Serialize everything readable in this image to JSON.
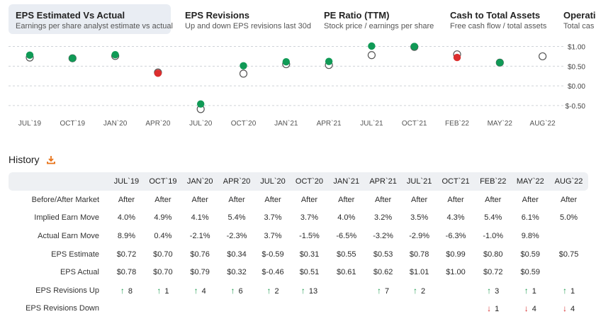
{
  "tabs": [
    {
      "title": "EPS Estimated Vs Actual",
      "subtitle": "Earnings per share analyst estimate vs actual"
    },
    {
      "title": "EPS Revisions",
      "subtitle": "Up and down EPS revisions last 30d"
    },
    {
      "title": "PE Ratio (TTM)",
      "subtitle": "Stock price / earnings per share"
    },
    {
      "title": "Cash to Total Assets",
      "subtitle": "Free cash flow / total assets"
    },
    {
      "title": "Operati",
      "subtitle": "Total cas"
    }
  ],
  "chart_data": {
    "type": "scatter",
    "categories": [
      "JUL`19",
      "OCT`19",
      "JAN`20",
      "APR`20",
      "JUL`20",
      "OCT`20",
      "JAN`21",
      "APR`21",
      "JUL`21",
      "OCT`21",
      "FEB`22",
      "MAY`22",
      "AUG`22"
    ],
    "series": [
      {
        "marker": "hollow-circle",
        "values": [
          0.72,
          0.7,
          0.76,
          0.34,
          -0.59,
          0.31,
          0.55,
          0.53,
          0.78,
          0.99,
          0.8,
          0.59,
          0.75
        ]
      },
      {
        "marker": "filled-circle",
        "values": [
          0.78,
          0.7,
          0.79,
          0.32,
          -0.46,
          0.51,
          0.61,
          0.62,
          1.01,
          1.0,
          0.72,
          0.59,
          null
        ]
      }
    ],
    "y_ticks": [
      1.0,
      0.5,
      0.0,
      -0.5
    ],
    "y_tick_labels": [
      "$1.00",
      "$0.50",
      "$0.00",
      "$-0.50"
    ],
    "ylim": [
      -0.7,
      1.1
    ],
    "grid": "horizontal-dashed",
    "colors": {
      "beat": "#109a56",
      "miss": "#dc2e2e",
      "estimate_stroke": "#555555",
      "grid": "#cfd3d8"
    }
  },
  "history": {
    "title": "History",
    "columns": [
      "JUL`19",
      "OCT`19",
      "JAN`20",
      "APR`20",
      "JUL`20",
      "OCT`20",
      "JAN`21",
      "APR`21",
      "JUL`21",
      "OCT`21",
      "FEB`22",
      "MAY`22",
      "AUG`22"
    ],
    "rows": [
      {
        "label": "Before/After Market",
        "cells": [
          {
            "v": "After"
          },
          {
            "v": "After"
          },
          {
            "v": "After"
          },
          {
            "v": "After"
          },
          {
            "v": "After"
          },
          {
            "v": "After"
          },
          {
            "v": "After"
          },
          {
            "v": "After"
          },
          {
            "v": "After"
          },
          {
            "v": "After"
          },
          {
            "v": "After"
          },
          {
            "v": "After"
          },
          {
            "v": "After"
          }
        ]
      },
      {
        "label": "Implied Earn Move",
        "cells": [
          {
            "v": "4.0%"
          },
          {
            "v": "4.9%"
          },
          {
            "v": "4.1%"
          },
          {
            "v": "5.4%"
          },
          {
            "v": "3.7%"
          },
          {
            "v": "3.7%"
          },
          {
            "v": "4.0%"
          },
          {
            "v": "3.2%"
          },
          {
            "v": "3.5%"
          },
          {
            "v": "4.3%"
          },
          {
            "v": "5.4%"
          },
          {
            "v": "6.1%"
          },
          {
            "v": "5.0%"
          }
        ]
      },
      {
        "label": "Actual Earn Move",
        "cells": [
          {
            "v": "8.9%",
            "c": "pos"
          },
          {
            "v": "0.4%",
            "c": "pos"
          },
          {
            "v": "-2.1%",
            "c": "neg"
          },
          {
            "v": "-2.3%",
            "c": "neg"
          },
          {
            "v": "3.7%",
            "c": "pos"
          },
          {
            "v": "-1.5%",
            "c": "neg"
          },
          {
            "v": "-6.5%",
            "c": "neg"
          },
          {
            "v": "-3.2%",
            "c": "neg"
          },
          {
            "v": "-2.9%",
            "c": "neg"
          },
          {
            "v": "-6.3%",
            "c": "neg"
          },
          {
            "v": "-1.0%",
            "c": "neg"
          },
          {
            "v": "9.8%",
            "c": "pos"
          },
          {
            "v": ""
          }
        ]
      },
      {
        "label": "EPS Estimate",
        "cells": [
          {
            "v": "$0.72"
          },
          {
            "v": "$0.70"
          },
          {
            "v": "$0.76"
          },
          {
            "v": "$0.34"
          },
          {
            "v": "$-0.59"
          },
          {
            "v": "$0.31"
          },
          {
            "v": "$0.55"
          },
          {
            "v": "$0.53"
          },
          {
            "v": "$0.78"
          },
          {
            "v": "$0.99"
          },
          {
            "v": "$0.80"
          },
          {
            "v": "$0.59"
          },
          {
            "v": "$0.75"
          }
        ]
      },
      {
        "label": "EPS Actual",
        "cells": [
          {
            "v": "$0.78",
            "c": "pos"
          },
          {
            "v": "$0.70"
          },
          {
            "v": "$0.79",
            "c": "pos"
          },
          {
            "v": "$0.32",
            "c": "neg"
          },
          {
            "v": "$-0.46",
            "c": "pos"
          },
          {
            "v": "$0.51",
            "c": "pos"
          },
          {
            "v": "$0.61",
            "c": "pos"
          },
          {
            "v": "$0.62",
            "c": "pos"
          },
          {
            "v": "$1.01",
            "c": "pos"
          },
          {
            "v": "$1.00",
            "c": "pos"
          },
          {
            "v": "$0.72",
            "c": "neg"
          },
          {
            "v": "$0.59"
          },
          {
            "v": ""
          }
        ]
      },
      {
        "label": "EPS Revisions Up",
        "cells": [
          {
            "v": "8",
            "c": "up"
          },
          {
            "v": "1",
            "c": "up"
          },
          {
            "v": "4",
            "c": "up"
          },
          {
            "v": "6",
            "c": "up"
          },
          {
            "v": "2",
            "c": "up"
          },
          {
            "v": "13",
            "c": "up"
          },
          {
            "v": ""
          },
          {
            "v": "7",
            "c": "up"
          },
          {
            "v": "2",
            "c": "up"
          },
          {
            "v": ""
          },
          {
            "v": "3",
            "c": "up"
          },
          {
            "v": "1",
            "c": "up"
          },
          {
            "v": "1",
            "c": "up"
          }
        ]
      },
      {
        "label": "EPS Revisions Down",
        "cells": [
          {
            "v": ""
          },
          {
            "v": ""
          },
          {
            "v": ""
          },
          {
            "v": ""
          },
          {
            "v": ""
          },
          {
            "v": ""
          },
          {
            "v": ""
          },
          {
            "v": ""
          },
          {
            "v": ""
          },
          {
            "v": ""
          },
          {
            "v": "1",
            "c": "down"
          },
          {
            "v": "4",
            "c": "down"
          },
          {
            "v": "4",
            "c": "down"
          }
        ]
      }
    ]
  },
  "icons": {
    "download": "download-icon",
    "arrow_up": "arrow-up-icon",
    "arrow_down": "arrow-down-icon"
  }
}
